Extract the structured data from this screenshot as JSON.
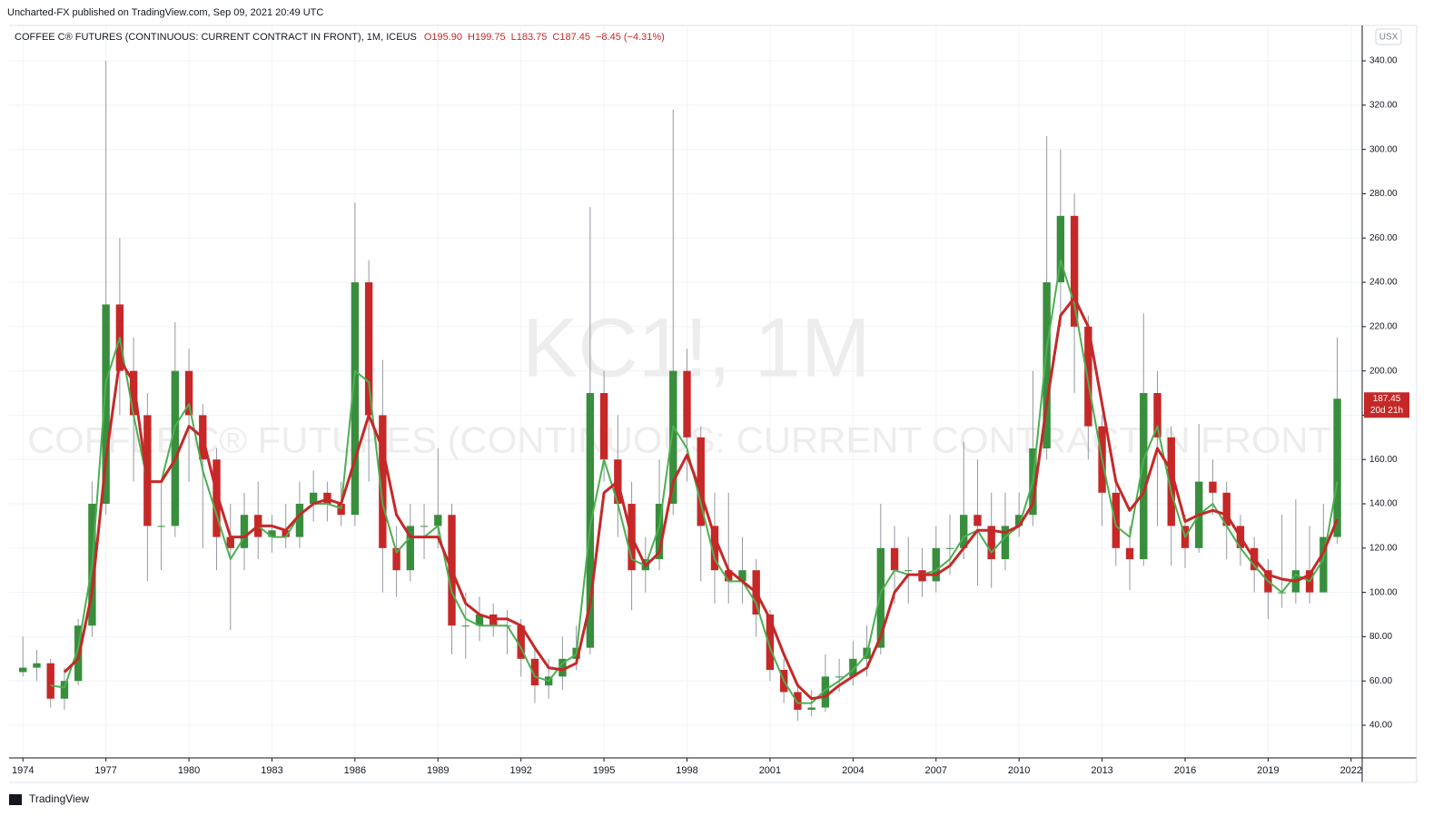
{
  "header": {
    "published": "Uncharted-FX published on TradingView.com, Sep 09, 2021 20:49 UTC",
    "footer": "TradingView"
  },
  "chart_data": {
    "type": "candlestick",
    "title": "COFFEE C® FUTURES (CONTINUOUS: CURRENT CONTRACT IN FRONT), 1M, ICEUS",
    "legend_values": [
      "O195.90",
      "H199.75",
      "L183.75",
      "C187.45",
      "−8.45 (−4.31%)"
    ],
    "watermark": "KC1!, 1M",
    "watermark_sub": "COFFEE C® FUTURES (CONTINUOUS: CURRENT CONTRACT IN FRONT)",
    "currency": "USX",
    "countdown": "20d 21h",
    "up_color": "#388e3c",
    "down_color": "#c62828",
    "grid": true,
    "x": [
      1974,
      1974.5,
      1975,
      1975.5,
      1976,
      1976.5,
      1977,
      1977.5,
      1978,
      1978.5,
      1979,
      1979.5,
      1980,
      1980.5,
      1981,
      1981.5,
      1982,
      1982.5,
      1983,
      1983.5,
      1984,
      1984.5,
      1985,
      1985.5,
      1986,
      1986.5,
      1987,
      1987.5,
      1988,
      1988.5,
      1989,
      1989.5,
      1990,
      1990.5,
      1991,
      1991.5,
      1992,
      1992.5,
      1993,
      1993.5,
      1994,
      1994.5,
      1995,
      1995.5,
      1996,
      1996.5,
      1997,
      1997.5,
      1998,
      1998.5,
      1999,
      1999.5,
      2000,
      2000.5,
      2001,
      2001.5,
      2002,
      2002.5,
      2003,
      2003.5,
      2004,
      2004.5,
      2005,
      2005.5,
      2006,
      2006.5,
      2007,
      2007.5,
      2008,
      2008.5,
      2009,
      2009.5,
      2010,
      2010.5,
      2011,
      2011.5,
      2012,
      2012.5,
      2013,
      2013.5,
      2014,
      2014.5,
      2015,
      2015.5,
      2016,
      2016.5,
      2017,
      2017.5,
      2018,
      2018.5,
      2019,
      2019.5,
      2020,
      2020.5,
      2021,
      2021.5
    ],
    "open": [
      64,
      66,
      68,
      52,
      60,
      85,
      140,
      230,
      200,
      180,
      130,
      130,
      200,
      180,
      160,
      125,
      120,
      135,
      125,
      128,
      125,
      140,
      145,
      140,
      135,
      240,
      180,
      120,
      110,
      130,
      130,
      135,
      85,
      85,
      90,
      85,
      85,
      70,
      58,
      62,
      70,
      75,
      190,
      160,
      140,
      110,
      115,
      140,
      200,
      170,
      130,
      110,
      105,
      110,
      90,
      65,
      55,
      47,
      48,
      62,
      62,
      70,
      75,
      120,
      110,
      110,
      105,
      120,
      120,
      135,
      130,
      115,
      130,
      135,
      165,
      240,
      270,
      220,
      175,
      145,
      120,
      115,
      190,
      170,
      130,
      120,
      150,
      145,
      130,
      120,
      110,
      100,
      100,
      110,
      100,
      125
    ],
    "high": [
      80,
      74,
      70,
      66,
      88,
      150,
      340,
      260,
      215,
      190,
      150,
      222,
      210,
      185,
      165,
      140,
      145,
      150,
      135,
      140,
      150,
      155,
      150,
      150,
      276,
      250,
      205,
      130,
      140,
      140,
      165,
      140,
      100,
      98,
      95,
      92,
      88,
      75,
      70,
      80,
      85,
      274,
      200,
      180,
      150,
      125,
      160,
      318,
      210,
      175,
      145,
      145,
      125,
      115,
      92,
      70,
      58,
      56,
      72,
      70,
      78,
      85,
      140,
      130,
      125,
      120,
      130,
      135,
      168,
      160,
      145,
      145,
      145,
      200,
      306,
      300,
      280,
      225,
      180,
      150,
      130,
      226,
      200,
      175,
      135,
      176,
      160,
      150,
      135,
      125,
      115,
      135,
      142,
      130,
      140,
      215
    ],
    "low": [
      62,
      60,
      48,
      47,
      58,
      80,
      135,
      180,
      150,
      105,
      110,
      125,
      150,
      120,
      110,
      83,
      110,
      115,
      118,
      120,
      120,
      132,
      132,
      130,
      130,
      150,
      100,
      98,
      105,
      115,
      120,
      72,
      70,
      78,
      80,
      72,
      62,
      50,
      52,
      56,
      65,
      72,
      150,
      125,
      92,
      100,
      110,
      135,
      150,
      105,
      95,
      95,
      95,
      80,
      60,
      50,
      42,
      44,
      46,
      55,
      58,
      62,
      72,
      95,
      95,
      98,
      100,
      108,
      115,
      103,
      102,
      110,
      125,
      130,
      160,
      220,
      190,
      160,
      130,
      112,
      101,
      112,
      130,
      112,
      111,
      118,
      135,
      115,
      112,
      100,
      88,
      93,
      95,
      95,
      100,
      122
    ],
    "close": [
      66,
      68,
      52,
      60,
      85,
      140,
      230,
      200,
      180,
      130,
      130,
      200,
      180,
      160,
      125,
      120,
      135,
      125,
      128,
      125,
      140,
      145,
      140,
      135,
      240,
      180,
      120,
      110,
      130,
      130,
      135,
      85,
      85,
      90,
      85,
      85,
      70,
      58,
      62,
      70,
      75,
      190,
      160,
      140,
      110,
      115,
      140,
      200,
      170,
      130,
      110,
      105,
      110,
      90,
      65,
      55,
      47,
      48,
      62,
      62,
      70,
      75,
      120,
      110,
      110,
      105,
      120,
      120,
      135,
      130,
      115,
      130,
      135,
      165,
      240,
      270,
      220,
      175,
      145,
      120,
      115,
      190,
      170,
      130,
      120,
      150,
      145,
      130,
      120,
      110,
      100,
      100,
      110,
      100,
      125,
      187.45
    ],
    "lines": [
      {
        "color": "#4caf50",
        "values": [
          null,
          null,
          58,
          57,
          75,
          112,
          195,
          215,
          180,
          150,
          150,
          175,
          185,
          155,
          135,
          115,
          125,
          130,
          125,
          125,
          135,
          140,
          140,
          138,
          200,
          195,
          140,
          118,
          125,
          125,
          130,
          100,
          88,
          85,
          85,
          85,
          75,
          62,
          60,
          68,
          72,
          130,
          160,
          140,
          115,
          112,
          130,
          175,
          165,
          140,
          115,
          105,
          105,
          95,
          75,
          60,
          50,
          50,
          56,
          60,
          65,
          72,
          100,
          110,
          108,
          108,
          110,
          115,
          125,
          128,
          118,
          125,
          130,
          150,
          210,
          250,
          230,
          195,
          160,
          130,
          125,
          160,
          175,
          145,
          125,
          135,
          140,
          130,
          120,
          112,
          105,
          100,
          108,
          105,
          115,
          150
        ]
      },
      {
        "color": "#c62828",
        "values": [
          null,
          null,
          null,
          64,
          70,
          100,
          160,
          205,
          195,
          150,
          150,
          160,
          175,
          170,
          145,
          125,
          125,
          130,
          130,
          128,
          135,
          140,
          142,
          140,
          160,
          180,
          165,
          135,
          125,
          125,
          125,
          110,
          95,
          90,
          88,
          88,
          85,
          75,
          66,
          65,
          68,
          95,
          145,
          150,
          125,
          112,
          118,
          150,
          162,
          145,
          125,
          110,
          105,
          100,
          88,
          72,
          58,
          52,
          53,
          58,
          62,
          66,
          80,
          100,
          108,
          108,
          108,
          112,
          120,
          128,
          128,
          127,
          130,
          140,
          185,
          225,
          233,
          220,
          185,
          150,
          137,
          145,
          165,
          155,
          132,
          135,
          137,
          135,
          125,
          115,
          108,
          106,
          105,
          108,
          118,
          133
        ]
      }
    ],
    "xlim": [
      1973.5,
      2022.4
    ],
    "xticks": [
      1974,
      1977,
      1980,
      1983,
      1986,
      1989,
      1992,
      1995,
      1998,
      2001,
      2004,
      2007,
      2010,
      2013,
      2016,
      2019,
      2022
    ],
    "ylim": [
      25.25,
      356
    ],
    "yticks": [
      {
        "value": 40,
        "label": "40.00"
      },
      {
        "value": 60,
        "label": "60.00"
      },
      {
        "value": 80,
        "label": "80.00"
      },
      {
        "value": 100,
        "label": "100.00"
      },
      {
        "value": 120,
        "label": "120.00"
      },
      {
        "value": 140,
        "label": "140.00"
      },
      {
        "value": 160,
        "label": "160.00"
      },
      {
        "value": 180,
        "label": "180.00"
      },
      {
        "value": 200,
        "label": "200.00"
      },
      {
        "value": 220,
        "label": "220.00"
      },
      {
        "value": 240,
        "label": "240.00"
      },
      {
        "value": 260,
        "label": "260.00"
      },
      {
        "value": 280,
        "label": "280.00"
      },
      {
        "value": 300,
        "label": "300.00"
      },
      {
        "value": 320,
        "label": "320.00"
      },
      {
        "value": 340,
        "label": "340.00"
      }
    ]
  }
}
